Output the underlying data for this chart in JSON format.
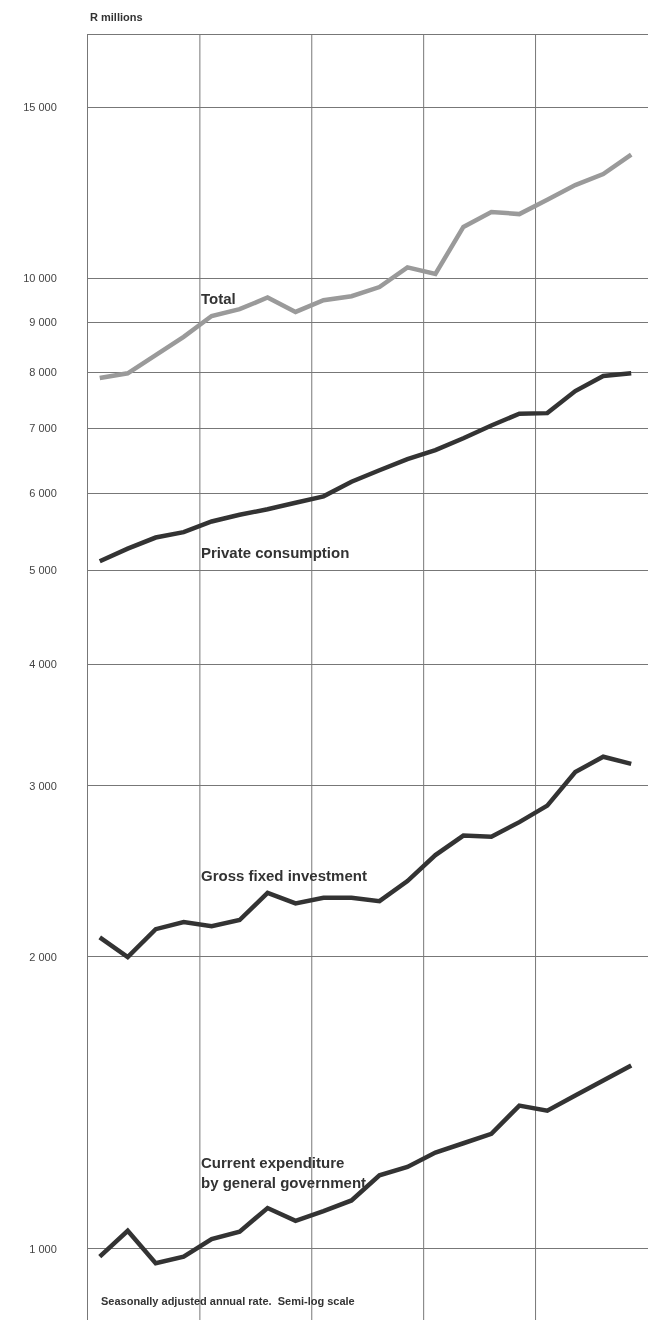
{
  "chart_data": {
    "type": "line",
    "ylabel": "R millions",
    "annotations": [
      "Seasonally adjusted annual rate.  Semi-log scale"
    ],
    "categories": [
      null,
      null,
      null,
      null,
      null,
      null,
      null,
      null,
      null,
      null,
      null,
      null,
      null,
      null,
      null,
      null,
      null,
      null,
      null,
      null
    ],
    "ylim": [
      845,
      17800
    ],
    "yticks": [
      {
        "value": 1000,
        "label": "1 000"
      },
      {
        "value": 2000,
        "label": "2 000"
      },
      {
        "value": 3000,
        "label": "3 000"
      },
      {
        "value": 4000,
        "label": "4 000"
      },
      {
        "value": 5000,
        "label": "5 000"
      },
      {
        "value": 6000,
        "label": "6 000"
      },
      {
        "value": 7000,
        "label": "7 000"
      },
      {
        "value": 8000,
        "label": "8 000"
      },
      {
        "value": 9000,
        "label": "9 000"
      },
      {
        "value": 10000,
        "label": "10 000"
      },
      {
        "value": 15000,
        "label": "15 000"
      }
    ],
    "log": "y",
    "grid": true,
    "legend": false,
    "marker": "none",
    "line_style": "solid",
    "tick_labels": "y",
    "series": [
      {
        "name": "Total",
        "color": "#9a9a9a",
        "values": [
          7890,
          7980,
          8330,
          8700,
          9140,
          9290,
          9550,
          9230,
          9490,
          9580,
          9790,
          10260,
          10100,
          11290,
          11700,
          11640,
          12040,
          12470,
          12800,
          13400
        ]
      },
      {
        "name": "Private consumption",
        "color": "#333333",
        "values": [
          5110,
          5265,
          5405,
          5475,
          5615,
          5705,
          5780,
          5870,
          5960,
          6170,
          6340,
          6510,
          6650,
          6840,
          7050,
          7250,
          7260,
          7650,
          7930,
          7980
        ]
      },
      {
        "name": "Gross fixed investment",
        "color": "#333333",
        "values": [
          2094,
          1998,
          2135,
          2171,
          2150,
          2182,
          2327,
          2270,
          2300,
          2300,
          2282,
          2393,
          2545,
          2666,
          2658,
          2752,
          2862,
          3099,
          3214,
          3160
        ]
      },
      {
        "name": "Current expenditure\nby general government",
        "color": "#333333",
        "values": [
          982,
          1044,
          967,
          982,
          1024,
          1042,
          1102,
          1069,
          1094,
          1122,
          1191,
          1215,
          1257,
          1285,
          1314,
          1405,
          1388,
          1439,
          1491,
          1545
        ]
      }
    ]
  }
}
